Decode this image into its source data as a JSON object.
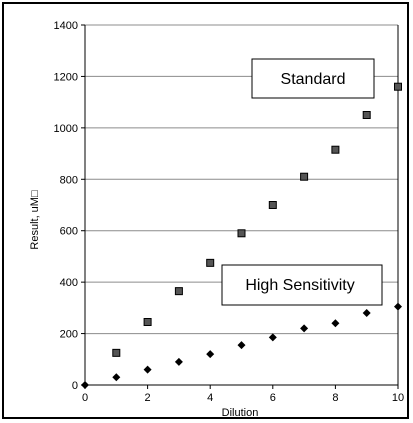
{
  "chart_data": {
    "type": "scatter",
    "title": "",
    "xlabel": "Dilution",
    "ylabel": "Result, uM□",
    "xlim": [
      0,
      10
    ],
    "ylim": [
      0,
      1400
    ],
    "xticks": [
      0,
      2,
      4,
      6,
      8,
      10
    ],
    "yticks": [
      0,
      200,
      400,
      600,
      800,
      1000,
      1200,
      1400
    ],
    "grid": "horizontal",
    "series": [
      {
        "name": "Standard",
        "marker": "square",
        "color": "#555555",
        "x": [
          1,
          2,
          3,
          4,
          5,
          6,
          7,
          8,
          9,
          10
        ],
        "y": [
          125,
          245,
          365,
          475,
          590,
          700,
          810,
          915,
          1050,
          1160
        ]
      },
      {
        "name": "High Sensitivity",
        "marker": "diamond",
        "color": "#000000",
        "x": [
          0,
          1,
          2,
          3,
          4,
          5,
          6,
          7,
          8,
          9,
          10
        ],
        "y": [
          0,
          30,
          60,
          90,
          120,
          155,
          185,
          220,
          240,
          280,
          305
        ]
      }
    ],
    "annotations": [
      "Standard",
      "High Sensitivity"
    ]
  }
}
